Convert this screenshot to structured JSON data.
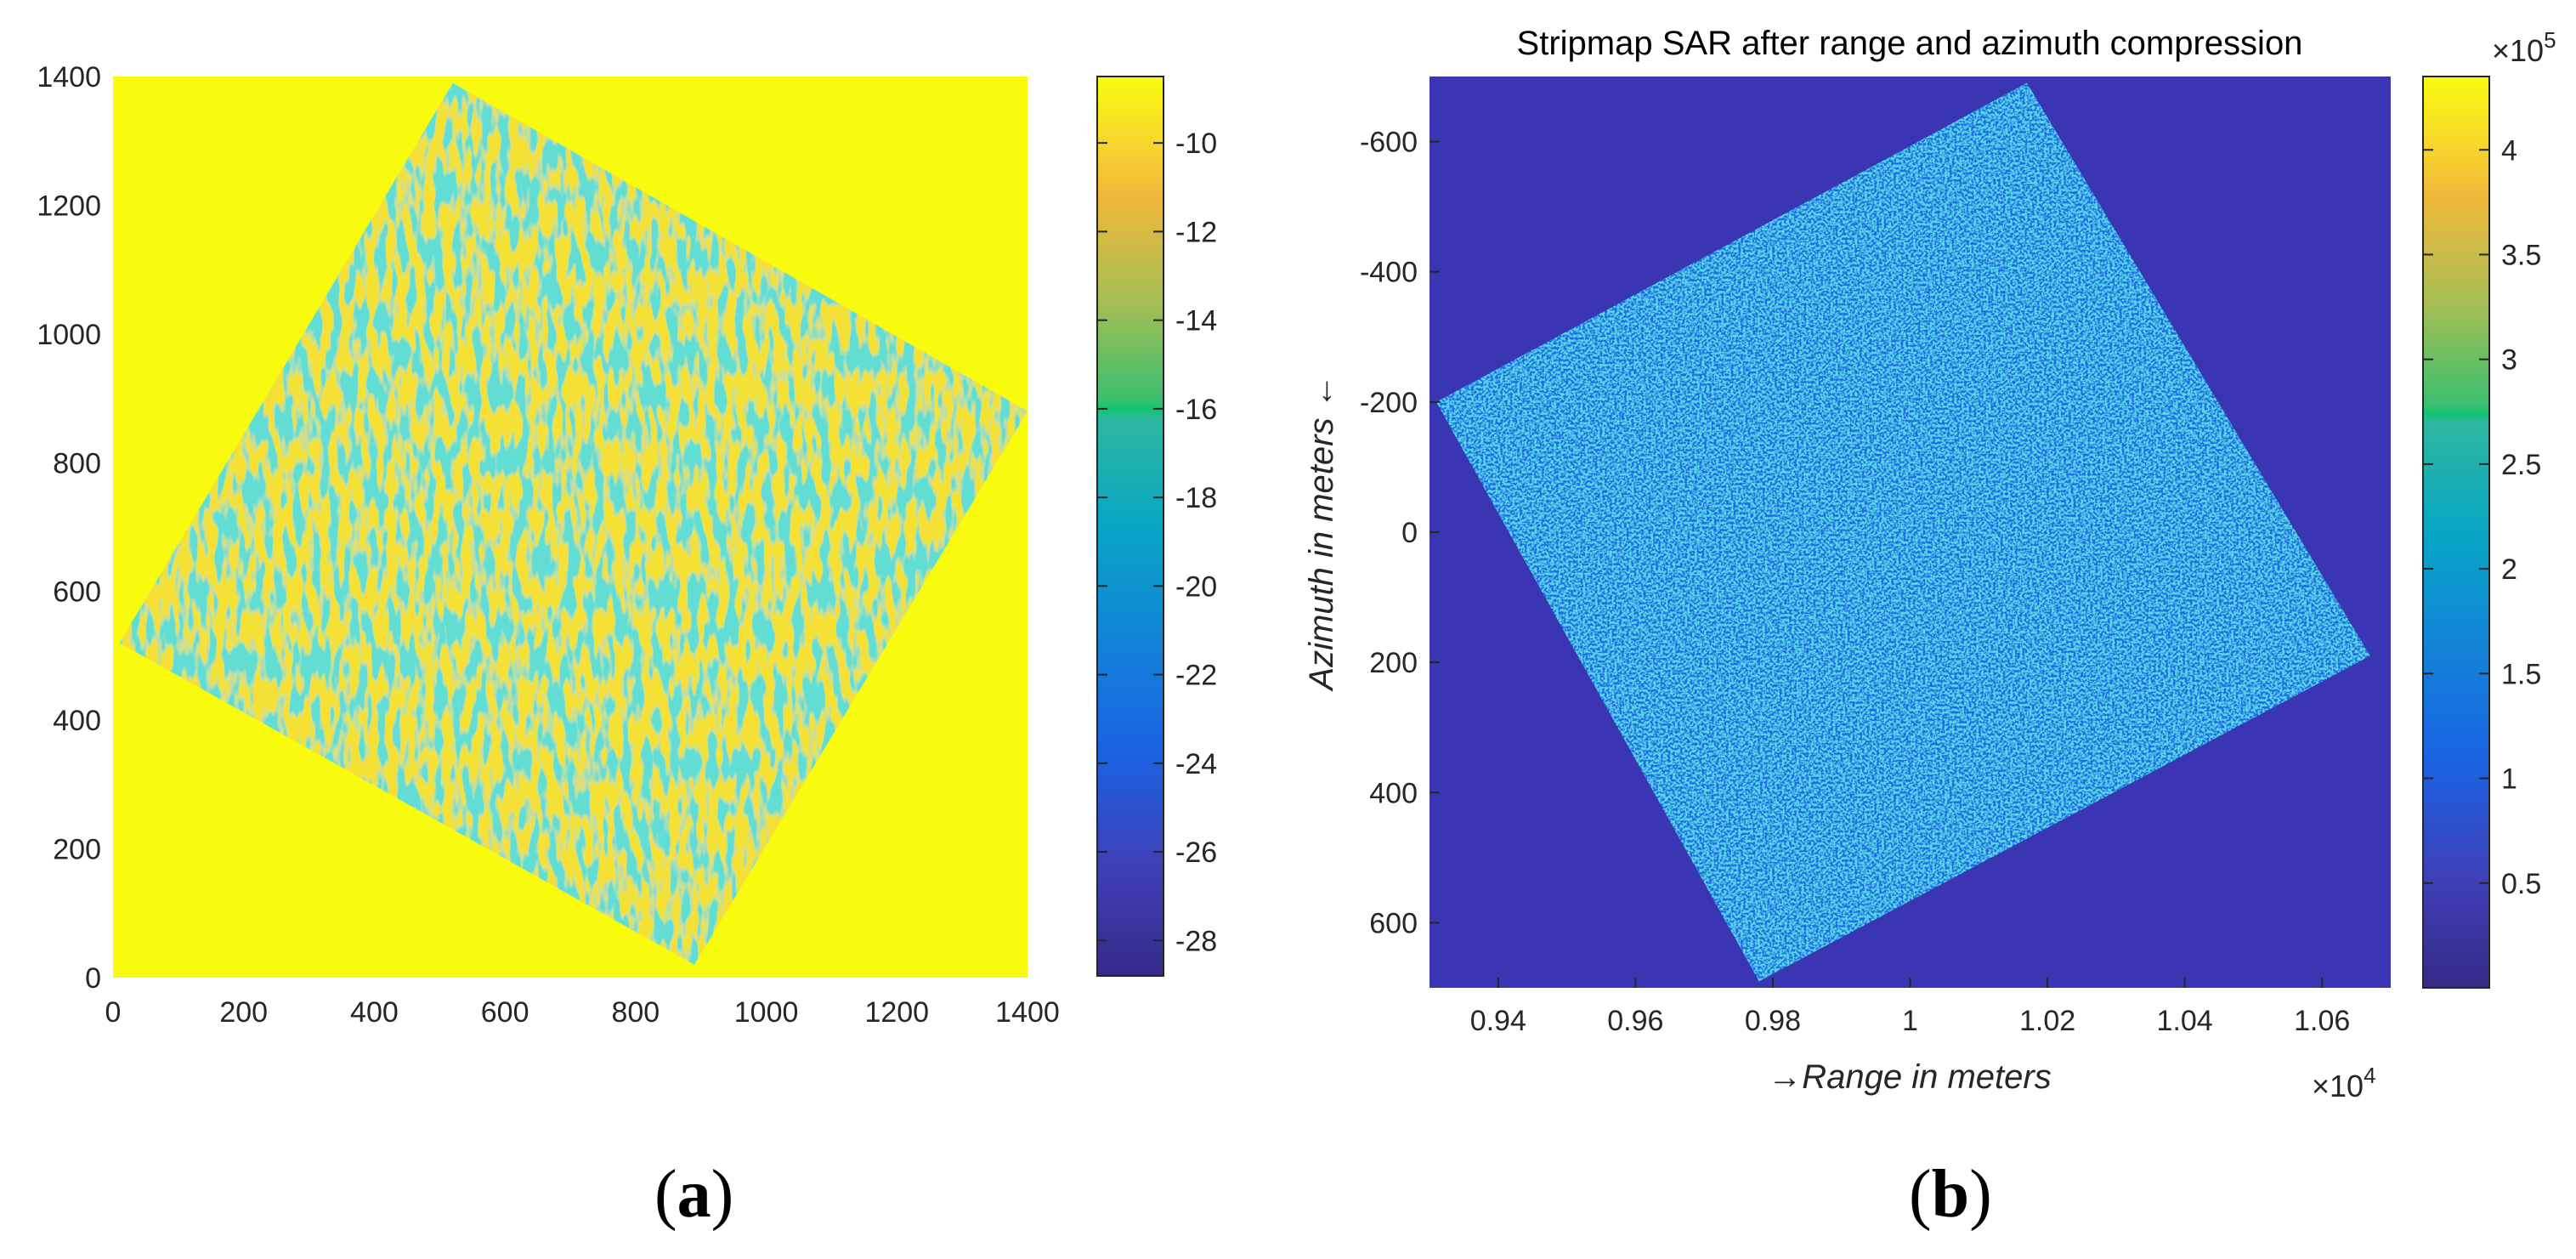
{
  "chart_data": [
    {
      "type": "heatmap",
      "panel_label": "a",
      "title": "",
      "xlabel": "",
      "ylabel": "",
      "xlim": [
        0,
        1400
      ],
      "ylim": [
        0,
        1400
      ],
      "x_ticks": [
        0,
        200,
        400,
        600,
        800,
        1000,
        1200,
        1400
      ],
      "y_ticks": [
        0,
        200,
        400,
        600,
        800,
        1000,
        1200,
        1400
      ],
      "colorbar": {
        "range": [
          -28.8,
          -8.5
        ],
        "ticks": [
          -10,
          -12,
          -14,
          -16,
          -18,
          -20,
          -22,
          -24,
          -26,
          -28
        ],
        "colormap": "parula"
      },
      "background_value": -8.5,
      "rotated_square_corners": [
        [
          520,
          1390
        ],
        [
          1400,
          880
        ],
        [
          890,
          20
        ],
        [
          10,
          520
        ]
      ]
    },
    {
      "type": "heatmap",
      "panel_label": "b",
      "title": "Stripmap SAR after range and azimuth compression",
      "xlabel": "→Range in meters",
      "ylabel": "Azimuth in meters ←",
      "x_multiplier": "×10^4",
      "y_multiplier": "",
      "xlim": [
        0.93,
        1.07
      ],
      "ylim": [
        -700,
        700
      ],
      "y_reversed": true,
      "x_ticks": [
        0.94,
        0.96,
        0.98,
        1,
        1.02,
        1.04,
        1.06
      ],
      "y_ticks": [
        -600,
        -400,
        -200,
        0,
        200,
        400,
        600
      ],
      "colorbar": {
        "range": [
          0,
          4.35
        ],
        "ticks": [
          0.5,
          1,
          1.5,
          2,
          2.5,
          3,
          3.5,
          4
        ],
        "multiplier": "×10^5",
        "colormap": "parula"
      },
      "background_value": 0.1,
      "rotated_square_corners": [
        [
          1.017,
          -690
        ],
        [
          1.067,
          190
        ],
        [
          0.978,
          690
        ],
        [
          0.931,
          -200
        ]
      ]
    }
  ],
  "panel_labels": {
    "a": "a",
    "b": "b"
  },
  "colors": {
    "parula": [
      "#352a87",
      "#0f5cdd",
      "#1481d6",
      "#06a4ca",
      "#2eb7a4",
      "#87bf77",
      "#d1bb59",
      "#fec832",
      "#f9fb0e"
    ]
  }
}
